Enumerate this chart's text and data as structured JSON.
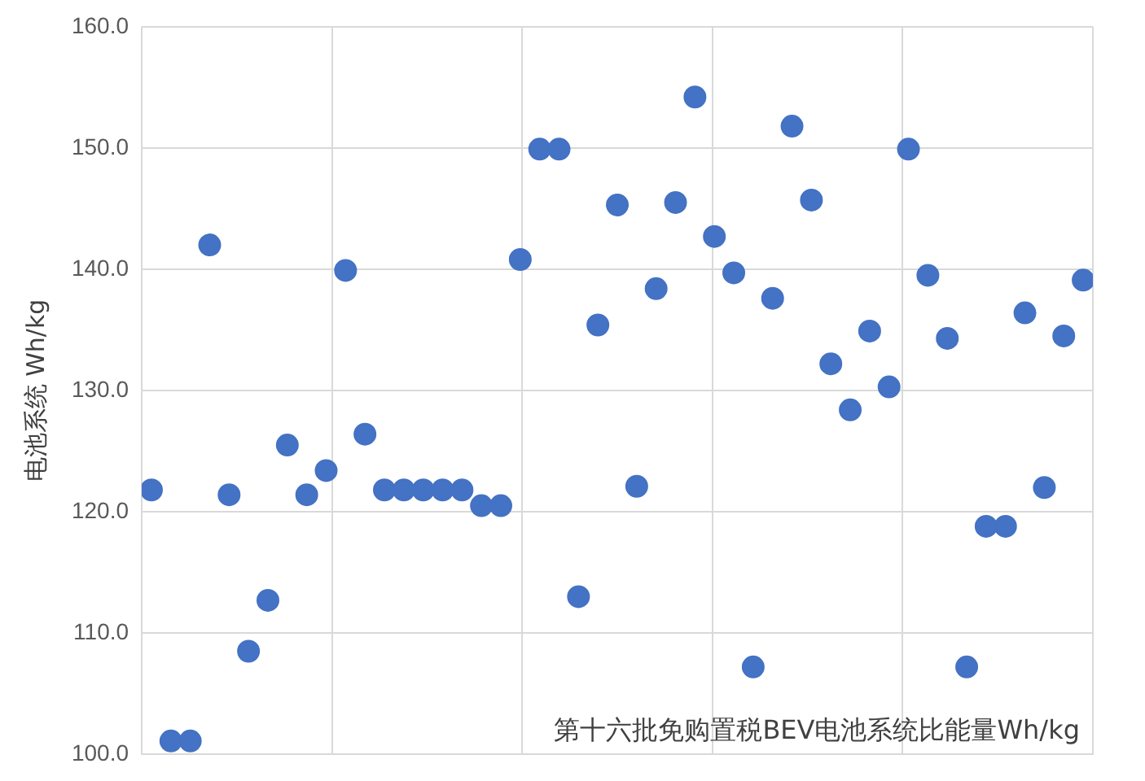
{
  "chart_data": {
    "type": "scatter",
    "ylabel": "电池系统 Wh/kg",
    "annotations": [
      "第十六批免购置税BEV电池系统比能量Wh/kg"
    ],
    "categories": [
      null,
      null,
      null,
      null,
      null,
      null,
      null,
      null,
      null,
      null,
      null,
      null,
      null,
      null,
      null,
      null,
      null,
      null,
      null,
      null,
      null,
      null,
      null,
      null,
      null,
      null,
      null,
      null,
      null,
      null,
      null,
      null,
      null,
      null,
      null,
      null,
      null,
      null,
      null,
      null,
      null,
      null,
      null,
      null,
      null,
      null,
      null,
      null,
      null
    ],
    "series": [
      {
        "color": "#4472c4",
        "values": [
          121.8,
          101.1,
          101.1,
          142.0,
          121.4,
          108.5,
          112.7,
          125.5,
          121.4,
          123.4,
          139.9,
          126.4,
          121.8,
          121.8,
          121.8,
          121.8,
          121.8,
          120.5,
          120.5,
          140.8,
          149.9,
          149.9,
          113.0,
          135.4,
          145.3,
          122.1,
          138.4,
          145.5,
          154.2,
          142.7,
          139.7,
          107.2,
          137.6,
          151.8,
          145.7,
          132.2,
          128.4,
          134.9,
          130.3,
          149.9,
          139.5,
          134.3,
          107.2,
          118.8,
          118.8,
          136.4,
          122.0,
          134.5,
          139.1
        ]
      }
    ],
    "ylim": [
      100,
      160
    ],
    "yticks": [
      {
        "value": 100,
        "label": "100.0"
      },
      {
        "value": 110,
        "label": "110.0"
      },
      {
        "value": 120,
        "label": "120.0"
      },
      {
        "value": 130,
        "label": "130.0"
      },
      {
        "value": 140,
        "label": "140.0"
      },
      {
        "value": 150,
        "label": "150.0"
      },
      {
        "value": 160,
        "label": "160.0"
      }
    ],
    "tick_labels": "y",
    "grid": true,
    "marker": "circle",
    "legend": false
  }
}
